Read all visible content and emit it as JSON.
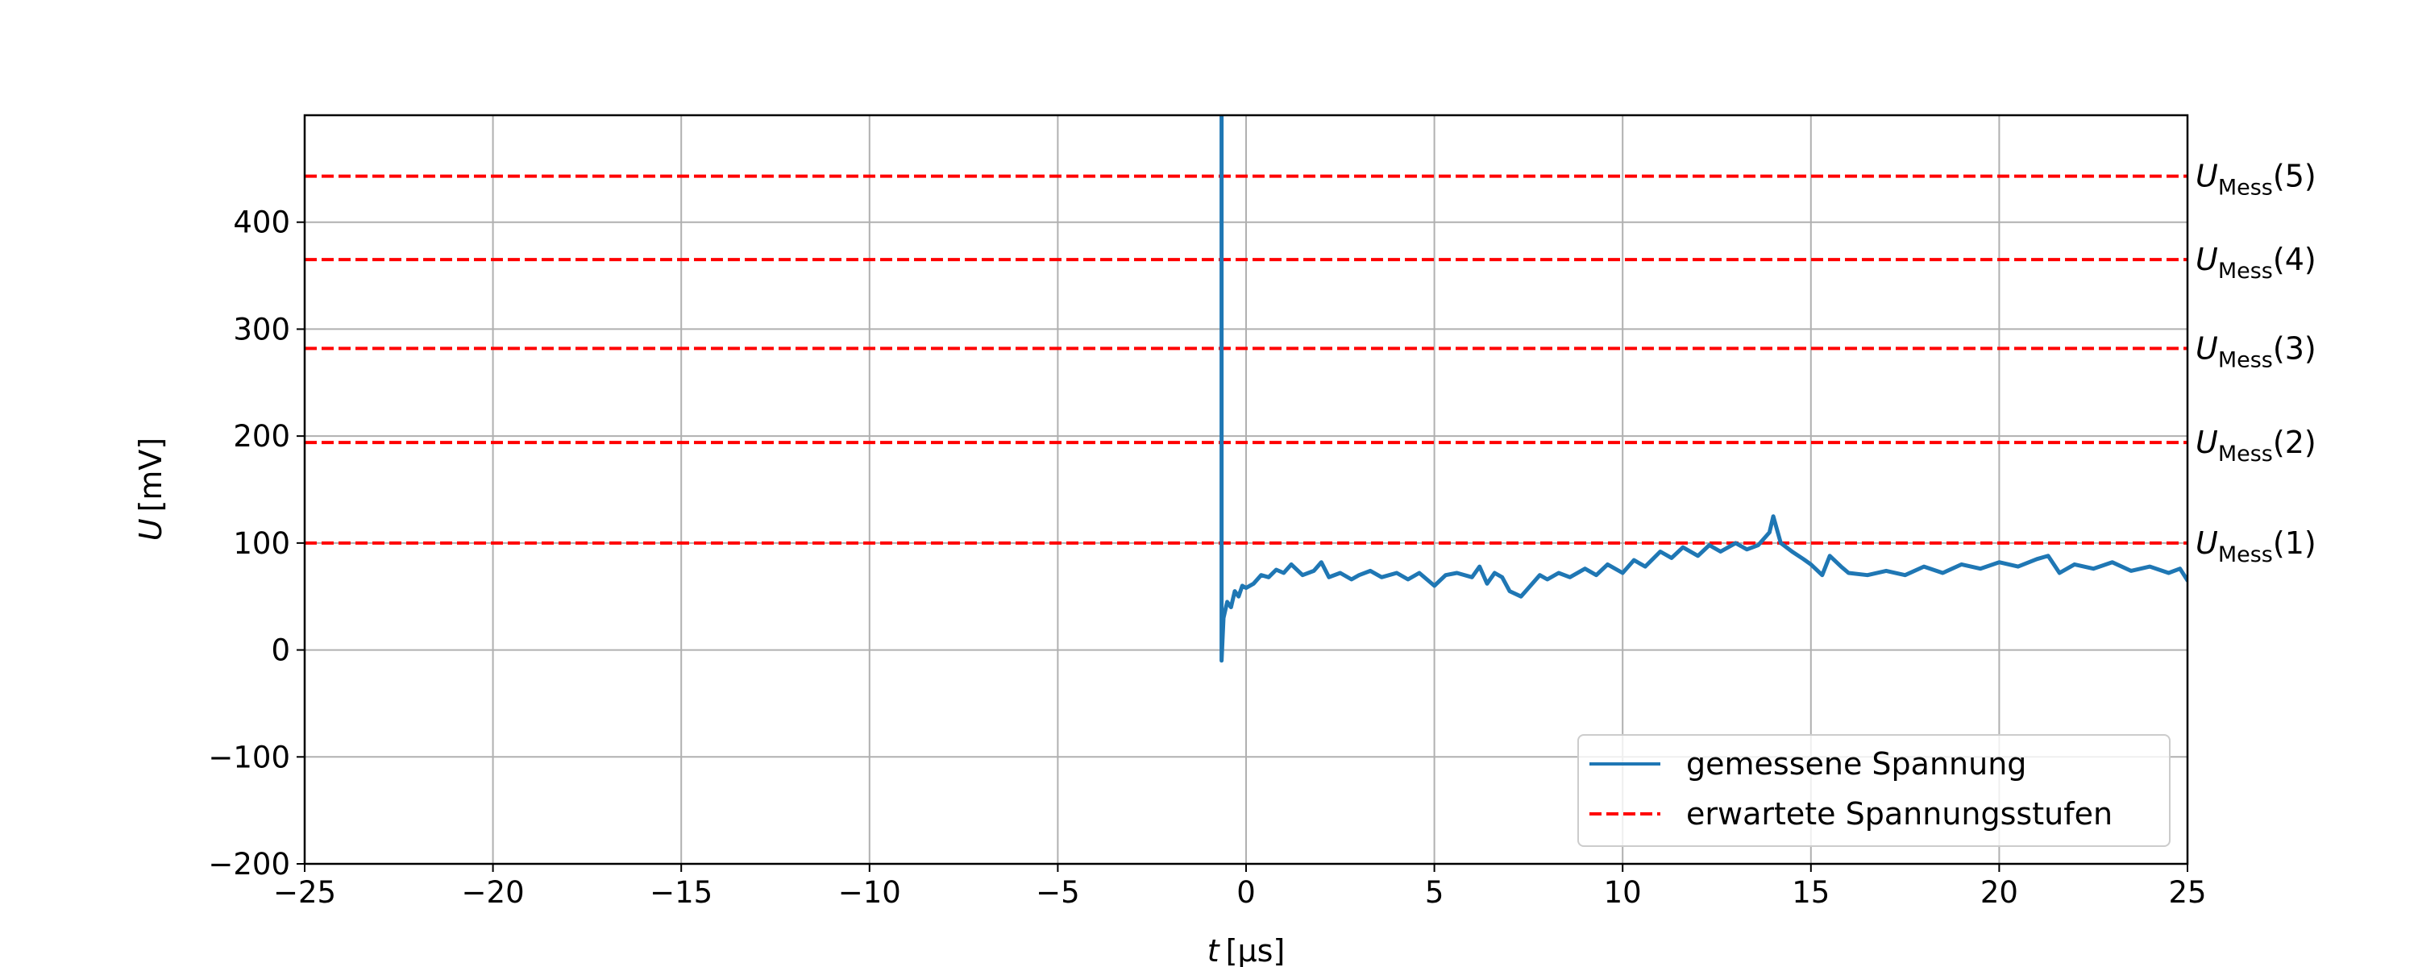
{
  "chart_data": {
    "type": "line",
    "xlabel": {
      "symbol": "t",
      "unit": "[µs]"
    },
    "ylabel": {
      "symbol": "U",
      "unit": "[mV]"
    },
    "xlim": [
      -25,
      25
    ],
    "ylim": [
      -200,
      500
    ],
    "x_ticks": [
      -25,
      -20,
      -15,
      -10,
      -5,
      0,
      5,
      10,
      15,
      20,
      25
    ],
    "x_tick_labels": [
      "−25",
      "−20",
      "−15",
      "−10",
      "−5",
      "0",
      "5",
      "10",
      "15",
      "20",
      "25"
    ],
    "y_ticks": [
      -200,
      -100,
      0,
      100,
      200,
      300,
      400
    ],
    "y_tick_labels": [
      "−200",
      "−100",
      "0",
      "100",
      "200",
      "300",
      "400"
    ],
    "grid": true,
    "legend_position": "lower-right",
    "series": [
      {
        "name": "gemessene Spannung",
        "style": "solid",
        "color": "#1f77b4",
        "x": [
          -0.65,
          -0.65,
          -0.65,
          -0.6,
          -0.5,
          -0.4,
          -0.3,
          -0.2,
          -0.1,
          0.0,
          0.2,
          0.4,
          0.6,
          0.8,
          1.0,
          1.2,
          1.5,
          1.8,
          2.0,
          2.2,
          2.5,
          2.8,
          3.0,
          3.3,
          3.6,
          4.0,
          4.3,
          4.6,
          5.0,
          5.3,
          5.6,
          6.0,
          6.2,
          6.4,
          6.6,
          6.8,
          7.0,
          7.3,
          7.5,
          7.8,
          8.0,
          8.3,
          8.6,
          9.0,
          9.3,
          9.6,
          10.0,
          10.3,
          10.6,
          11.0,
          11.3,
          11.6,
          12.0,
          12.3,
          12.6,
          13.0,
          13.3,
          13.6,
          13.9,
          14.0,
          14.2,
          14.5,
          14.8,
          15.0,
          15.3,
          15.5,
          15.8,
          16.0,
          16.5,
          17.0,
          17.5,
          18.0,
          18.5,
          19.0,
          19.5,
          20.0,
          20.5,
          21.0,
          21.3,
          21.6,
          22.0,
          22.5,
          23.0,
          23.5,
          24.0,
          24.5,
          24.8,
          25.0
        ],
        "y": [
          500,
          100,
          -10,
          30,
          45,
          40,
          55,
          50,
          60,
          58,
          62,
          70,
          68,
          75,
          72,
          80,
          70,
          74,
          82,
          68,
          72,
          66,
          70,
          74,
          68,
          72,
          66,
          72,
          60,
          70,
          72,
          68,
          78,
          62,
          72,
          68,
          55,
          50,
          58,
          70,
          66,
          72,
          68,
          76,
          70,
          80,
          72,
          84,
          78,
          92,
          86,
          96,
          88,
          98,
          92,
          100,
          94,
          98,
          110,
          125,
          100,
          92,
          85,
          80,
          70,
          88,
          78,
          72,
          70,
          74,
          70,
          78,
          72,
          80,
          76,
          82,
          78,
          85,
          88,
          72,
          80,
          76,
          82,
          74,
          78,
          72,
          76,
          65
        ]
      },
      {
        "name": "erwartete Spannungsstufen",
        "style": "dashed",
        "color": "#ff0000",
        "levels": [
          100,
          194,
          282,
          365,
          443
        ]
      }
    ],
    "hline_labels": [
      {
        "main": "U",
        "sub": "Mess",
        "arg": "(1)"
      },
      {
        "main": "U",
        "sub": "Mess",
        "arg": "(2)"
      },
      {
        "main": "U",
        "sub": "Mess",
        "arg": "(3)"
      },
      {
        "main": "U",
        "sub": "Mess",
        "arg": "(4)"
      },
      {
        "main": "U",
        "sub": "Mess",
        "arg": "(5)"
      }
    ]
  }
}
